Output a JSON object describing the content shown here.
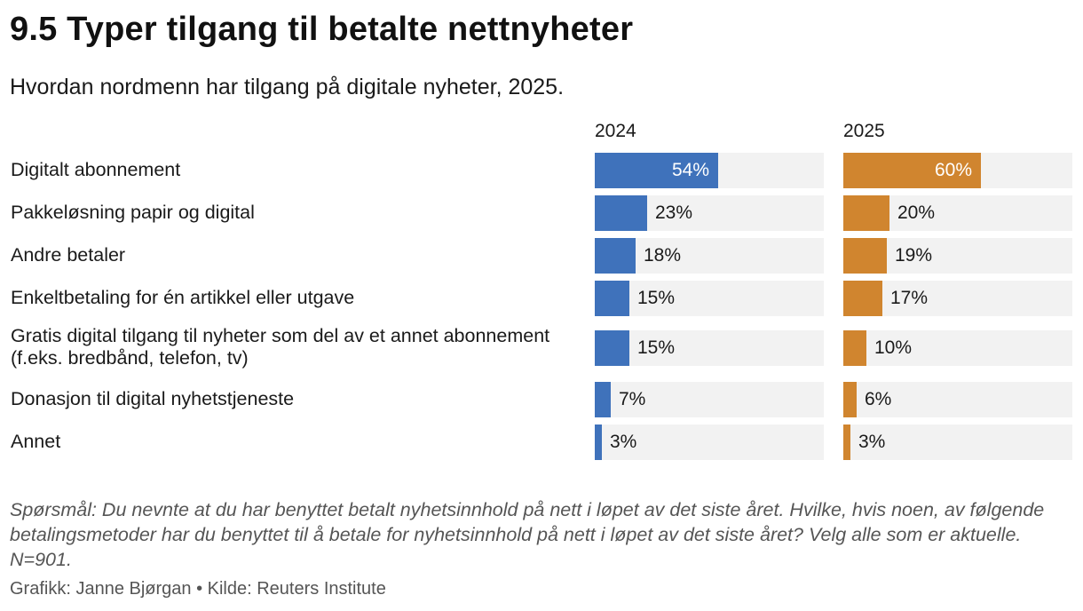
{
  "chart_data": {
    "type": "bar",
    "orientation": "horizontal",
    "title": "9.5 Typer tilgang til betalte nettnyheter",
    "subtitle": "Hvordan nordmenn har tilgang på digitale nyheter, 2025.",
    "categories": [
      "Digitalt abonnement",
      "Pakkeløsning papir og digital",
      "Andre betaler",
      "Enkeltbetaling for én artikkel eller utgave",
      "Gratis digital tilgang til nyheter som del av et annet abonnement (f.eks. bredbånd, telefon, tv)",
      "Donasjon til digital nyhetstjeneste",
      "Annet"
    ],
    "series": [
      {
        "name": "2024",
        "color": "#3f72bb",
        "values": [
          54,
          23,
          18,
          15,
          15,
          7,
          3
        ],
        "labels": [
          "54%",
          "23%",
          "18%",
          "15%",
          "15%",
          "7%",
          "3%"
        ]
      },
      {
        "name": "2025",
        "color": "#d0852f",
        "values": [
          60,
          20,
          19,
          17,
          10,
          6,
          3
        ],
        "labels": [
          "60%",
          "20%",
          "19%",
          "17%",
          "10%",
          "6%",
          "3%"
        ]
      }
    ],
    "xlim": [
      0,
      100
    ],
    "grid": false,
    "legend": "none"
  },
  "footer": {
    "question": "Spørsmål: Du nevnte at du har benyttet betalt nyhetsinnhold på nett i løpet av det siste året. Hvilke, hvis noen, av følgende betalingsmetoder har du benyttet til å betale for nyhetsinnhold på nett i løpet av det siste året? Velg alle som er aktuelle. N=901.",
    "credits": "Grafikk: Janne Bjørgan • Kilde: Reuters Institute"
  },
  "colors": {
    "track": "#f2f2f2"
  }
}
